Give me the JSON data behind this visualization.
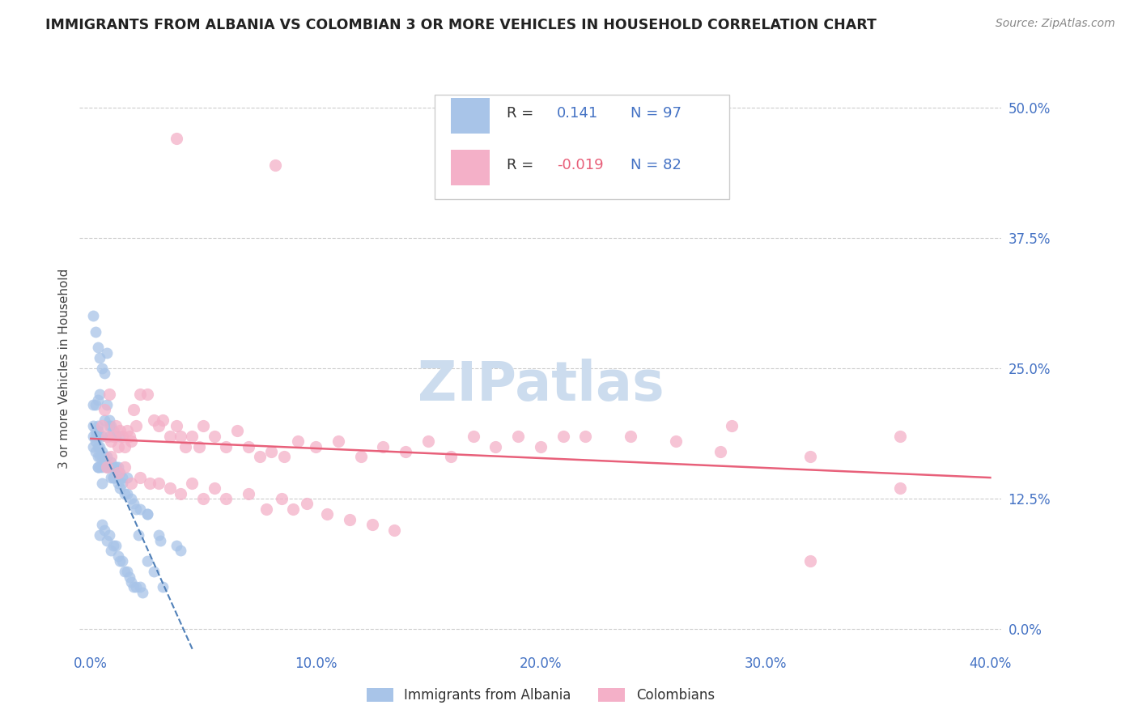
{
  "title": "IMMIGRANTS FROM ALBANIA VS COLOMBIAN 3 OR MORE VEHICLES IN HOUSEHOLD CORRELATION CHART",
  "source": "Source: ZipAtlas.com",
  "ylabel": "3 or more Vehicles in Household",
  "xlim": [
    -0.005,
    0.405
  ],
  "ylim": [
    -0.02,
    0.52
  ],
  "xticks": [
    0.0,
    0.1,
    0.2,
    0.3,
    0.4
  ],
  "xticklabels": [
    "0.0%",
    "10.0%",
    "20.0%",
    "30.0%",
    "40.0%"
  ],
  "yticks": [
    0.0,
    0.125,
    0.25,
    0.375,
    0.5
  ],
  "yticklabels": [
    "0.0%",
    "12.5%",
    "25.0%",
    "37.5%",
    "50.0%"
  ],
  "legend_labels": [
    "Immigrants from Albania",
    "Colombians"
  ],
  "albania_color": "#a8c4e8",
  "colombia_color": "#f4b0c8",
  "albania_trend_color": "#5080b8",
  "colombia_trend_color": "#e8607a",
  "watermark_color": "#ccdcee",
  "albania_R": 0.141,
  "albania_N": 97,
  "colombia_R": -0.019,
  "colombia_N": 82,
  "albania_x": [
    0.001,
    0.001,
    0.001,
    0.001,
    0.002,
    0.002,
    0.002,
    0.002,
    0.002,
    0.003,
    0.003,
    0.003,
    0.003,
    0.003,
    0.003,
    0.003,
    0.004,
    0.004,
    0.004,
    0.004,
    0.004,
    0.005,
    0.005,
    0.005,
    0.005,
    0.005,
    0.006,
    0.006,
    0.006,
    0.006,
    0.007,
    0.007,
    0.007,
    0.007,
    0.008,
    0.008,
    0.008,
    0.009,
    0.009,
    0.009,
    0.009,
    0.01,
    0.01,
    0.01,
    0.011,
    0.011,
    0.011,
    0.012,
    0.012,
    0.013,
    0.013,
    0.013,
    0.014,
    0.014,
    0.015,
    0.016,
    0.016,
    0.017,
    0.018,
    0.019,
    0.019,
    0.02,
    0.021,
    0.022,
    0.023,
    0.025,
    0.025,
    0.028,
    0.031,
    0.032,
    0.038,
    0.001,
    0.002,
    0.003,
    0.004,
    0.005,
    0.006,
    0.007,
    0.008,
    0.009,
    0.01,
    0.011,
    0.012,
    0.013,
    0.014,
    0.016,
    0.018,
    0.022,
    0.025,
    0.003,
    0.005,
    0.007,
    0.01,
    0.015,
    0.02,
    0.03,
    0.04
  ],
  "albania_y": [
    0.175,
    0.185,
    0.195,
    0.215,
    0.17,
    0.18,
    0.185,
    0.19,
    0.215,
    0.155,
    0.165,
    0.175,
    0.185,
    0.19,
    0.195,
    0.22,
    0.09,
    0.155,
    0.165,
    0.175,
    0.225,
    0.1,
    0.155,
    0.165,
    0.17,
    0.185,
    0.095,
    0.16,
    0.165,
    0.2,
    0.085,
    0.155,
    0.165,
    0.215,
    0.09,
    0.185,
    0.195,
    0.075,
    0.145,
    0.16,
    0.195,
    0.08,
    0.155,
    0.19,
    0.08,
    0.155,
    0.185,
    0.07,
    0.155,
    0.065,
    0.15,
    0.185,
    0.065,
    0.145,
    0.055,
    0.055,
    0.145,
    0.05,
    0.045,
    0.04,
    0.12,
    0.04,
    0.09,
    0.04,
    0.035,
    0.065,
    0.11,
    0.055,
    0.085,
    0.04,
    0.08,
    0.3,
    0.285,
    0.27,
    0.26,
    0.25,
    0.245,
    0.265,
    0.2,
    0.155,
    0.145,
    0.145,
    0.14,
    0.135,
    0.14,
    0.13,
    0.125,
    0.115,
    0.11,
    0.155,
    0.14,
    0.155,
    0.145,
    0.13,
    0.115,
    0.09,
    0.075
  ],
  "colombia_x": [
    0.005,
    0.006,
    0.007,
    0.008,
    0.009,
    0.01,
    0.011,
    0.012,
    0.013,
    0.014,
    0.015,
    0.016,
    0.017,
    0.018,
    0.019,
    0.02,
    0.022,
    0.025,
    0.028,
    0.03,
    0.032,
    0.035,
    0.038,
    0.04,
    0.042,
    0.045,
    0.048,
    0.05,
    0.055,
    0.06,
    0.065,
    0.07,
    0.075,
    0.08,
    0.086,
    0.092,
    0.1,
    0.11,
    0.12,
    0.13,
    0.14,
    0.15,
    0.16,
    0.17,
    0.18,
    0.19,
    0.2,
    0.21,
    0.22,
    0.24,
    0.26,
    0.28,
    0.32,
    0.36,
    0.007,
    0.009,
    0.012,
    0.015,
    0.018,
    0.022,
    0.026,
    0.03,
    0.035,
    0.04,
    0.045,
    0.05,
    0.055,
    0.06,
    0.07,
    0.078,
    0.085,
    0.09,
    0.096,
    0.105,
    0.115,
    0.125,
    0.135,
    0.038,
    0.082,
    0.285,
    0.36,
    0.32
  ],
  "colombia_y": [
    0.195,
    0.21,
    0.185,
    0.225,
    0.18,
    0.185,
    0.195,
    0.175,
    0.19,
    0.185,
    0.175,
    0.19,
    0.185,
    0.18,
    0.21,
    0.195,
    0.225,
    0.225,
    0.2,
    0.195,
    0.2,
    0.185,
    0.195,
    0.185,
    0.175,
    0.185,
    0.175,
    0.195,
    0.185,
    0.175,
    0.19,
    0.175,
    0.165,
    0.17,
    0.165,
    0.18,
    0.175,
    0.18,
    0.165,
    0.175,
    0.17,
    0.18,
    0.165,
    0.185,
    0.175,
    0.185,
    0.175,
    0.185,
    0.185,
    0.185,
    0.18,
    0.17,
    0.165,
    0.185,
    0.155,
    0.165,
    0.15,
    0.155,
    0.14,
    0.145,
    0.14,
    0.14,
    0.135,
    0.13,
    0.14,
    0.125,
    0.135,
    0.125,
    0.13,
    0.115,
    0.125,
    0.115,
    0.12,
    0.11,
    0.105,
    0.1,
    0.095,
    0.47,
    0.445,
    0.195,
    0.135,
    0.065
  ],
  "tick_color": "#4472c4",
  "grid_color": "#cccccc",
  "title_color": "#222222",
  "source_color": "#888888",
  "legend_text_color": "#333333",
  "legend_R_color": "#4472c4",
  "legend_border_color": "#cccccc"
}
